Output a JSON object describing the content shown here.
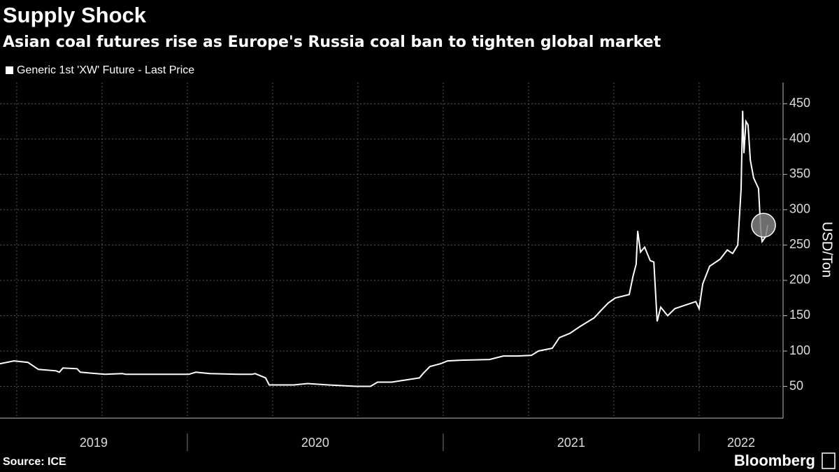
{
  "chart_data": {
    "type": "line",
    "title": "Supply Shock",
    "subtitle": "Asian coal futures rise as Europe's Russia coal ban to tighten global market",
    "y_label": "USD/Ton",
    "source": "Source: ICE",
    "brand": "Bloomberg",
    "xlim": [
      2019.268,
      2022.328
    ],
    "xticks": [
      {
        "value": 2019,
        "label": "2019"
      },
      {
        "value": 2020,
        "label": "2020"
      },
      {
        "value": 2021,
        "label": "2021"
      },
      {
        "value": 2022,
        "label": "2022"
      }
    ],
    "ylim": [
      5,
      480
    ],
    "yticks": [
      50,
      100,
      150,
      200,
      250,
      300,
      350,
      400,
      450
    ],
    "grid": true,
    "series": [
      {
        "name": "Generic 1st 'XW' Future - Last Price",
        "color": "#ffffff",
        "x": [
          2019.268,
          2019.323,
          2019.377,
          2019.418,
          2019.487,
          2019.5,
          2019.514,
          2019.569,
          2019.582,
          2019.678,
          2019.746,
          2019.76,
          2019.951,
          2020.006,
          2020.033,
          2020.088,
          2020.197,
          2020.252,
          2020.265,
          2020.306,
          2020.32,
          2020.416,
          2020.47,
          2020.552,
          2020.661,
          2020.716,
          2020.743,
          2020.798,
          2020.907,
          2020.921,
          2020.948,
          2020.989,
          2021.017,
          2021.071,
          2021.181,
          2021.235,
          2021.29,
          2021.345,
          2021.372,
          2021.426,
          2021.454,
          2021.495,
          2021.536,
          2021.59,
          2021.618,
          2021.645,
          2021.672,
          2021.727,
          2021.741,
          2021.754,
          2021.76,
          2021.771,
          2021.787,
          2021.809,
          2021.823,
          2021.836,
          2021.85,
          2021.877,
          2021.905,
          2021.946,
          2021.987,
          2022.0,
          2022.014,
          2022.041,
          2022.082,
          2022.11,
          2022.131,
          2022.151,
          2022.164,
          2022.17,
          2022.175,
          2022.183,
          2022.191,
          2022.2,
          2022.213,
          2022.232,
          2022.241,
          2022.246,
          2022.26,
          2022.268
        ],
        "values": [
          82,
          86,
          84,
          74,
          72,
          70,
          76,
          75,
          70,
          67,
          68,
          67,
          67,
          67,
          70,
          68,
          67,
          67,
          68,
          62,
          52,
          52,
          54,
          52,
          50,
          50,
          56,
          56,
          62,
          68,
          78,
          82,
          86,
          87,
          88,
          93,
          93,
          94,
          100,
          104,
          119,
          125,
          135,
          147,
          158,
          168,
          175,
          180,
          205,
          223,
          270,
          240,
          247,
          228,
          226,
          142,
          162,
          150,
          160,
          165,
          170,
          160,
          195,
          220,
          230,
          243,
          238,
          250,
          330,
          440,
          380,
          425,
          420,
          370,
          345,
          330,
          270,
          255,
          262,
          278
        ]
      }
    ]
  }
}
